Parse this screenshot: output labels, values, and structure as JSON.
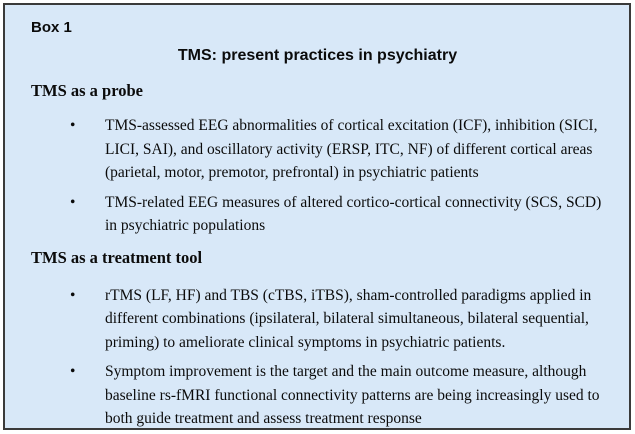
{
  "box": {
    "label": "Box 1",
    "title": "TMS: present practices in psychiatry",
    "bullet_glyph": "•",
    "colors": {
      "background": "#d8e8f8",
      "border": "#3a3a3a",
      "text": "#0b0b0b"
    },
    "sections": [
      {
        "heading": "TMS as a probe",
        "bullets": [
          "TMS-assessed EEG abnormalities of cortical excitation (ICF), inhibition (SICI, LICI, SAI), and oscillatory activity (ERSP, ITC, NF) of different cortical areas (parietal, motor, premotor, prefrontal) in psychiatric patients",
          "TMS-related EEG measures of altered cortico-cortical connectivity (SCS, SCD) in psychiatric populations"
        ]
      },
      {
        "heading": "TMS as a treatment tool",
        "bullets": [
          "rTMS (LF, HF) and TBS (cTBS, iTBS), sham-controlled paradigms applied in different combinations (ipsilateral, bilateral simultaneous, bilateral sequential, priming) to ameliorate clinical symptoms in psychiatric patients.",
          "Symptom improvement is the target and the main outcome measure, although baseline rs-fMRI functional connectivity patterns are being increasingly used to both guide treatment and assess treatment response"
        ]
      }
    ]
  }
}
